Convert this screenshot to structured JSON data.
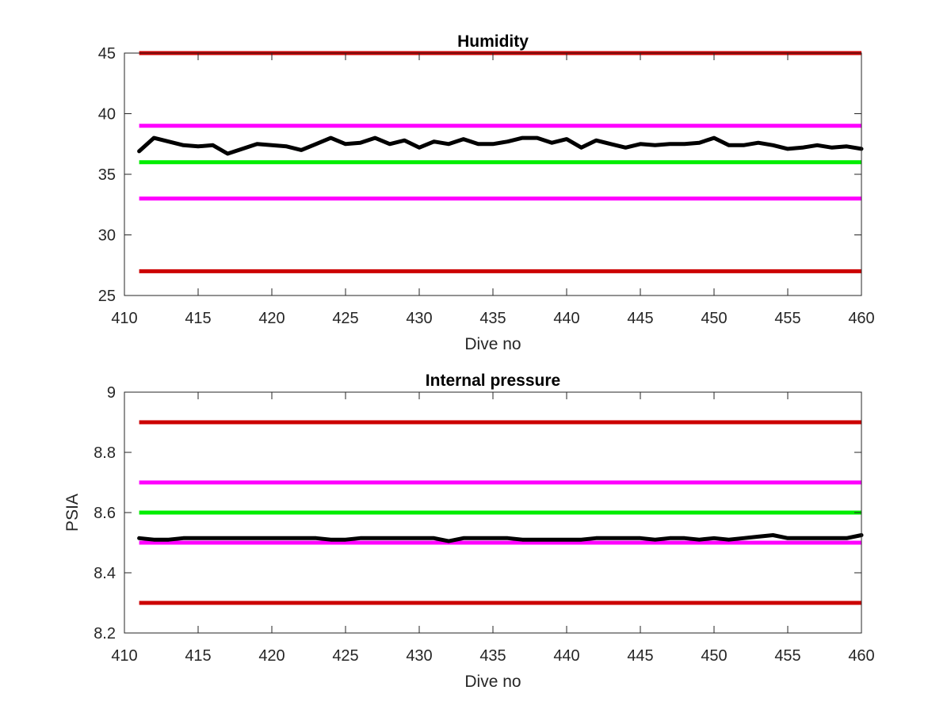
{
  "chart_data": [
    {
      "type": "line",
      "title": "Humidity",
      "xlabel": "Dive no",
      "ylabel": "",
      "xlim": [
        410,
        460
      ],
      "ylim": [
        25,
        45
      ],
      "xticks": [
        410,
        415,
        420,
        425,
        430,
        435,
        440,
        445,
        450,
        455,
        460
      ],
      "yticks": [
        25,
        30,
        35,
        40,
        45
      ],
      "grid": false,
      "thresholds": [
        {
          "value": 45,
          "color": "#cc0000"
        },
        {
          "value": 39,
          "color": "#ff00ff"
        },
        {
          "value": 36,
          "color": "#00ee00"
        },
        {
          "value": 33,
          "color": "#ff00ff"
        },
        {
          "value": 27,
          "color": "#cc0000"
        }
      ],
      "series": [
        {
          "color": "#000000",
          "x": [
            411,
            412,
            413,
            414,
            415,
            416,
            417,
            418,
            419,
            420,
            421,
            422,
            423,
            424,
            425,
            426,
            427,
            428,
            429,
            430,
            431,
            432,
            433,
            434,
            435,
            436,
            437,
            438,
            439,
            440,
            441,
            442,
            443,
            444,
            445,
            446,
            447,
            448,
            449,
            450,
            451,
            452,
            453,
            454,
            455,
            456,
            457,
            458,
            459,
            460
          ],
          "y": [
            36.9,
            38.0,
            37.7,
            37.4,
            37.3,
            37.4,
            36.7,
            37.1,
            37.5,
            37.4,
            37.3,
            37.0,
            37.5,
            38.0,
            37.5,
            37.6,
            38.0,
            37.5,
            37.8,
            37.2,
            37.7,
            37.5,
            37.9,
            37.5,
            37.5,
            37.7,
            38.0,
            38.0,
            37.6,
            37.9,
            37.2,
            37.8,
            37.5,
            37.2,
            37.5,
            37.4,
            37.5,
            37.5,
            37.6,
            38.0,
            37.4,
            37.4,
            37.6,
            37.4,
            37.1,
            37.2,
            37.4,
            37.2,
            37.3,
            37.1
          ]
        }
      ]
    },
    {
      "type": "line",
      "title": "Internal pressure",
      "xlabel": "Dive no",
      "ylabel": "PSIA",
      "xlim": [
        410,
        460
      ],
      "ylim": [
        8.2,
        9
      ],
      "xticks": [
        410,
        415,
        420,
        425,
        430,
        435,
        440,
        445,
        450,
        455,
        460
      ],
      "yticks": [
        8.2,
        8.4,
        8.6,
        8.8,
        9
      ],
      "grid": false,
      "thresholds": [
        {
          "value": 8.9,
          "color": "#cc0000"
        },
        {
          "value": 8.7,
          "color": "#ff00ff"
        },
        {
          "value": 8.6,
          "color": "#00ee00"
        },
        {
          "value": 8.5,
          "color": "#ff00ff"
        },
        {
          "value": 8.3,
          "color": "#cc0000"
        }
      ],
      "series": [
        {
          "color": "#000000",
          "x": [
            411,
            412,
            413,
            414,
            415,
            416,
            417,
            418,
            419,
            420,
            421,
            422,
            423,
            424,
            425,
            426,
            427,
            428,
            429,
            430,
            431,
            432,
            433,
            434,
            435,
            436,
            437,
            438,
            439,
            440,
            441,
            442,
            443,
            444,
            445,
            446,
            447,
            448,
            449,
            450,
            451,
            452,
            453,
            454,
            455,
            456,
            457,
            458,
            459,
            460
          ],
          "y": [
            8.515,
            8.51,
            8.51,
            8.515,
            8.515,
            8.515,
            8.515,
            8.515,
            8.515,
            8.515,
            8.515,
            8.515,
            8.515,
            8.51,
            8.51,
            8.515,
            8.515,
            8.515,
            8.515,
            8.515,
            8.515,
            8.505,
            8.515,
            8.515,
            8.515,
            8.515,
            8.51,
            8.51,
            8.51,
            8.51,
            8.51,
            8.515,
            8.515,
            8.515,
            8.515,
            8.51,
            8.515,
            8.515,
            8.51,
            8.515,
            8.51,
            8.515,
            8.52,
            8.525,
            8.515,
            8.515,
            8.515,
            8.515,
            8.515,
            8.525
          ]
        }
      ]
    }
  ]
}
